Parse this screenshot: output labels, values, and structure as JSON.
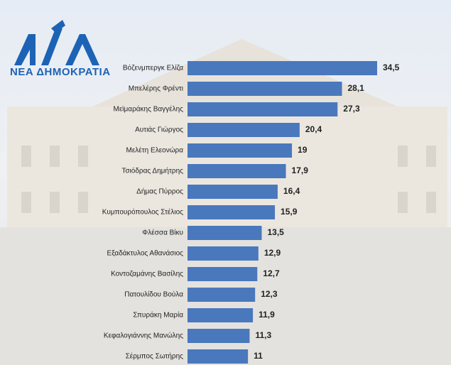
{
  "logo": {
    "text": "ΝΕΑ ΔΗΜΟΚΡΑΤΙΑ"
  },
  "chart_data": {
    "type": "bar",
    "orientation": "horizontal",
    "color": "#4a78bd",
    "categories": [
      "Βόζενμπεργκ Ελίζα",
      "Μπελέρης Φρέντι",
      "Μεϊμαράκης Βαγγέλης",
      "Αυτιάς Γιώργος",
      "Μελέτη Ελεονώρα",
      "Τσιόδρας Δημήτρης",
      "Δήμας Πύρρος",
      "Κυμπουρόπουλος Στέλιος",
      "Φλέσσα Βίκυ",
      "Εξαδάκτυλος Αθανάσιος",
      "Κοντοζαμάνης Βασίλης",
      "Πατουλίδου Βούλα",
      "Σπυράκη Μαρία",
      "Κεφαλογιάννης Μανώλης",
      "Σέρμπος Σωτήρης"
    ],
    "values": [
      34.5,
      28.1,
      27.3,
      20.4,
      19,
      17.9,
      16.4,
      15.9,
      13.5,
      12.9,
      12.7,
      12.3,
      11.9,
      11.3,
      11
    ],
    "value_labels": [
      "34,5",
      "28,1",
      "27,3",
      "20,4",
      "19",
      "17,9",
      "16,4",
      "15,9",
      "13,5",
      "12,9",
      "12,7",
      "12,3",
      "11,9",
      "11,3",
      "11"
    ]
  }
}
